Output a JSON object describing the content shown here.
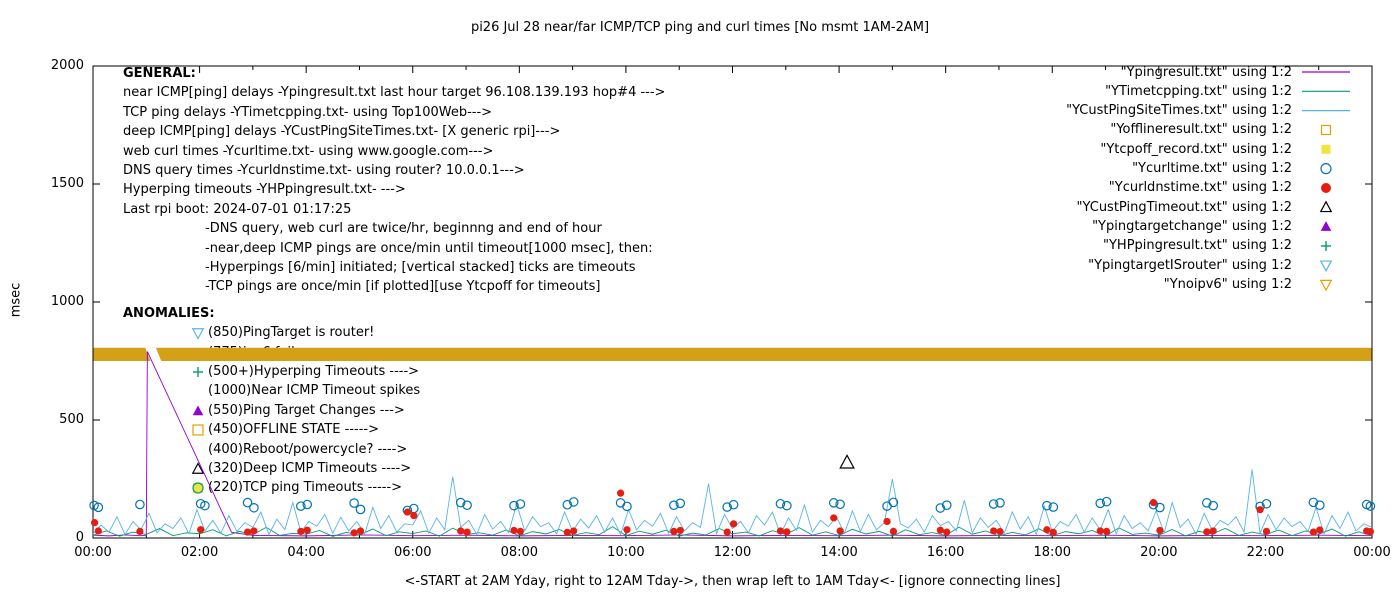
{
  "title": "pi26 Jul 28  near/far ICMP/TCP ping and curl times [No msmt 1AM-2AM]",
  "ylabel": "msec",
  "xlabel": "<-START at 2AM Yday, right to 12AM Tday->, then wrap left to 1AM Tday<- [ignore connecting lines]",
  "general": {
    "heading": "GENERAL:",
    "lines": [
      "near ICMP[ping] delays -Ypingresult.txt last hour target 96.108.139.193 hop#4 --->",
      "TCP ping delays -YTimetcpping.txt- using Top100Web--->",
      "deep ICMP[ping] delays -YCustPingSiteTimes.txt- [X generic rpi]--->",
      "web curl times -Ycurltime.txt- using www.google.com--->",
      "DNS query times -Ycurldnstime.txt- using router? 10.0.0.1--->",
      "Hyperping timeouts -YHPpingresult.txt- --->",
      "Last rpi boot: 2024-07-01 01:17:25"
    ],
    "notes": [
      "-DNS query, web curl are twice/hr, beginnng and end of hour",
      "-near,deep ICMP pings are once/min until timeout[1000 msec], then:",
      " -Hyperpings [6/min] initiated; [vertical stacked] ticks are timeouts",
      "-TCP pings are once/min [if plotted][use Ytcpoff for timeouts]"
    ]
  },
  "anomalies": {
    "heading": "ANOMALIES:",
    "items": [
      {
        "marker": "tri-down-open",
        "color": "#56b4e9",
        "text": "(850)PingTarget is router!"
      },
      {
        "marker": "tri-down-open",
        "color": "#e69f00",
        "text": "(775)ipv6 fail ---->",
        "obscured": true
      },
      {
        "marker": "plus",
        "color": "#009e73",
        "text": "(500+)Hyperping Timeouts ---->"
      },
      {
        "marker": null,
        "color": null,
        "text": "(1000)Near ICMP Timeout spikes"
      },
      {
        "marker": "triangle-filled",
        "color": "#9400d3",
        "text": "(550)Ping Target Changes --->"
      },
      {
        "marker": "square-open",
        "color": "#e69f00",
        "text": "(450)OFFLINE STATE ----->"
      },
      {
        "marker": null,
        "color": null,
        "text": "(400)Reboot/powercycle? ---->"
      },
      {
        "marker": "triangle-open",
        "color": "#000000",
        "text": "(320)Deep ICMP Timeouts ---->"
      },
      {
        "marker": "square-filled",
        "color": "#f0e442",
        "marker2": "circle-open",
        "color2": "#009e73",
        "text": "(220)TCP ping Timeouts ----->"
      }
    ]
  },
  "legend": [
    {
      "label": "\"Ypingresult.txt\" using 1:2",
      "marker": "line",
      "color": "#9400d3"
    },
    {
      "label": "\"YTimetcpping.txt\" using 1:2",
      "marker": "line",
      "color": "#009e73"
    },
    {
      "label": "\"YCustPingSiteTimes.txt\" using 1:2",
      "marker": "line",
      "color": "#56b4e9"
    },
    {
      "label": "\"Yofflineresult.txt\" using 1:2",
      "marker": "square-open",
      "color": "#e69f00"
    },
    {
      "label": "\"Ytcpoff_record.txt\" using 1:2",
      "marker": "square-filled",
      "color": "#f0e442"
    },
    {
      "label": "\"Ycurltime.txt\" using 1:2",
      "marker": "circle-open",
      "color": "#0072b2"
    },
    {
      "label": "\"Ycurldnstime.txt\" using 1:2",
      "marker": "circle-filled",
      "color": "#e51e10"
    },
    {
      "label": "\"YCustPingTimeout.txt\" using 1:2",
      "marker": "triangle-open",
      "color": "#000000"
    },
    {
      "label": "\"Ypingtargetchange\" using 1:2",
      "marker": "triangle-filled",
      "color": "#9400d3"
    },
    {
      "label": "\"YHPpingresult.txt\" using 1:2",
      "marker": "plus",
      "color": "#009e73"
    },
    {
      "label": "\"YpingtargetISrouter\" using 1:2",
      "marker": "tri-down-open",
      "color": "#56b4e9"
    },
    {
      "label": "\"Ynoipv6\" using 1:2",
      "marker": "tri-down-open",
      "color": "#e69f00"
    }
  ],
  "chart_data": {
    "type": "line",
    "title": "pi26 Jul 28  near/far ICMP/TCP ping and curl times [No msmt 1AM-2AM]",
    "xlabel": "<-START at 2AM Yday, right to 12AM Tday->, then wrap left to 1AM Tday<- [ignore connecting lines]",
    "ylabel": "msec",
    "xlim": [
      0,
      24
    ],
    "ylim": [
      0,
      2000
    ],
    "y_ticks": [
      0,
      500,
      1000,
      1500,
      2000
    ],
    "x_tick_labels": [
      "00:00",
      "02:00",
      "04:00",
      "06:00",
      "08:00",
      "10:00",
      "12:00",
      "14:00",
      "16:00",
      "18:00",
      "20:00",
      "22:00",
      "00:00"
    ],
    "grid": false,
    "legend_position": "top-right-outside-style",
    "series": [
      {
        "name": "Ypingresult",
        "type": "line",
        "color": "#9400d3",
        "points": [
          [
            0,
            12
          ],
          [
            0.3,
            9
          ],
          [
            0.6,
            13
          ],
          [
            0.9,
            10
          ],
          [
            1.0,
            12
          ],
          [
            1.02,
            790
          ],
          [
            2.6,
            24
          ],
          [
            3,
            11
          ],
          [
            4,
            9
          ],
          [
            5,
            13
          ],
          [
            6,
            10
          ],
          [
            7,
            12
          ],
          [
            8,
            9
          ],
          [
            9,
            11
          ],
          [
            10,
            10
          ],
          [
            11,
            13
          ],
          [
            12,
            9
          ],
          [
            13,
            11
          ],
          [
            14,
            10
          ],
          [
            15,
            12
          ],
          [
            16,
            9
          ],
          [
            17,
            11
          ],
          [
            18,
            10
          ],
          [
            19,
            12
          ],
          [
            20,
            9
          ],
          [
            21,
            11
          ],
          [
            22,
            10
          ],
          [
            23,
            12
          ],
          [
            24,
            10
          ]
        ]
      },
      {
        "name": "YTimetcpping",
        "type": "line",
        "color": "#009e73",
        "x_start": 0,
        "x_step": 0.25,
        "y": [
          12,
          30,
          8,
          25,
          15,
          40,
          10,
          22,
          18,
          35,
          9,
          28,
          14,
          45,
          11,
          20,
          16,
          32,
          7,
          24,
          13,
          38,
          10,
          26,
          19,
          30,
          8,
          42,
          15,
          22,
          12,
          34,
          9,
          27,
          17,
          36,
          11,
          23,
          14,
          48,
          10,
          29,
          16,
          33,
          8,
          21,
          13,
          40,
          18,
          25,
          9,
          31,
          15,
          44,
          12,
          26,
          10,
          37,
          17,
          28,
          8,
          35,
          14,
          23,
          11,
          46,
          16,
          30,
          9,
          24,
          13,
          39,
          10,
          27,
          18,
          32,
          8,
          43,
          15,
          21,
          12,
          36,
          9,
          28,
          17,
          41,
          11,
          25,
          14,
          34,
          10,
          30,
          16,
          38,
          8,
          26,
          10
        ]
      },
      {
        "name": "YCustPingSiteTimes",
        "type": "line",
        "color": "#56b4e9",
        "x_start": 0,
        "x_step": 0.15,
        "y": [
          18,
          55,
          25,
          90,
          15,
          70,
          35,
          105,
          22,
          60,
          40,
          85,
          18,
          120,
          30,
          75,
          20,
          95,
          28,
          65,
          45,
          110,
          15,
          80,
          35,
          150,
          25,
          70,
          50,
          100,
          20,
          88,
          30,
          70,
          18,
          130,
          40,
          95,
          25,
          60,
          55,
          115,
          20,
          85,
          35,
          260,
          45,
          75,
          15,
          100,
          38,
          70,
          22,
          145,
          30,
          90,
          48,
          65,
          18,
          110,
          28,
          80,
          42,
          95,
          25,
          85,
          15,
          120,
          35,
          75,
          50,
          105,
          20,
          90,
          30,
          65,
          45,
          230,
          18,
          100,
          40,
          70,
          22,
          95,
          55,
          110,
          15,
          85,
          33,
          140,
          25,
          75,
          48,
          90,
          20,
          115,
          28,
          100,
          35,
          65,
          250,
          60,
          42,
          80,
          25,
          95,
          52,
          70,
          30,
          160,
          22,
          85,
          45,
          75,
          20,
          110,
          38,
          90,
          15,
          135,
          28,
          70,
          50,
          100,
          25,
          85,
          35,
          120,
          18,
          95,
          40,
          65,
          30,
          115,
          22,
          150,
          45,
          80,
          15,
          105,
          33,
          75,
          55,
          90,
          25,
          290,
          20,
          100,
          35,
          85,
          48,
          70,
          28,
          130,
          18,
          95,
          40,
          110,
          30,
          60,
          45
        ]
      },
      {
        "name": "Ycurltime",
        "type": "scatter",
        "marker": "circle-open",
        "color": "#0072b2",
        "points": [
          [
            0.02,
            138
          ],
          [
            0.1,
            130
          ],
          [
            0.88,
            142
          ],
          [
            2.02,
            145
          ],
          [
            2.1,
            137
          ],
          [
            2.9,
            150
          ],
          [
            3.02,
            128
          ],
          [
            3.9,
            135
          ],
          [
            4.02,
            142
          ],
          [
            4.9,
            148
          ],
          [
            5.02,
            121
          ],
          [
            5.9,
            117
          ],
          [
            6.02,
            125
          ],
          [
            6.9,
            150
          ],
          [
            7.02,
            139
          ],
          [
            7.9,
            137
          ],
          [
            8.02,
            144
          ],
          [
            8.9,
            141
          ],
          [
            9.02,
            153
          ],
          [
            9.9,
            149
          ],
          [
            10.02,
            134
          ],
          [
            10.9,
            139
          ],
          [
            11.02,
            147
          ],
          [
            11.9,
            131
          ],
          [
            12.02,
            141
          ],
          [
            12.9,
            145
          ],
          [
            13.02,
            137
          ],
          [
            13.9,
            149
          ],
          [
            14.02,
            143
          ],
          [
            14.9,
            135
          ],
          [
            15.02,
            151
          ],
          [
            15.9,
            127
          ],
          [
            16.02,
            139
          ],
          [
            16.9,
            144
          ],
          [
            17.02,
            149
          ],
          [
            17.9,
            137
          ],
          [
            18.02,
            131
          ],
          [
            18.9,
            147
          ],
          [
            19.02,
            154
          ],
          [
            19.9,
            141
          ],
          [
            20.02,
            129
          ],
          [
            20.9,
            149
          ],
          [
            21.02,
            137
          ],
          [
            21.9,
            134
          ],
          [
            22.02,
            145
          ],
          [
            22.9,
            151
          ],
          [
            23.02,
            139
          ],
          [
            23.9,
            142
          ],
          [
            23.97,
            135
          ]
        ]
      },
      {
        "name": "Ycurldnstime",
        "type": "scatter",
        "marker": "circle-filled",
        "color": "#e51e10",
        "points": [
          [
            0.03,
            65
          ],
          [
            0.1,
            30
          ],
          [
            0.88,
            28
          ],
          [
            2.02,
            35
          ],
          [
            2.9,
            25
          ],
          [
            3.02,
            30
          ],
          [
            3.9,
            28
          ],
          [
            4.02,
            33
          ],
          [
            4.9,
            22
          ],
          [
            5.02,
            30
          ],
          [
            5.9,
            110
          ],
          [
            6.02,
            95
          ],
          [
            6.9,
            30
          ],
          [
            7.02,
            25
          ],
          [
            7.9,
            32
          ],
          [
            8.02,
            28
          ],
          [
            8.9,
            24
          ],
          [
            9.02,
            30
          ],
          [
            9.9,
            190
          ],
          [
            10.02,
            35
          ],
          [
            10.9,
            28
          ],
          [
            11.02,
            32
          ],
          [
            11.9,
            25
          ],
          [
            12.02,
            60
          ],
          [
            12.9,
            30
          ],
          [
            13.02,
            26
          ],
          [
            13.9,
            85
          ],
          [
            14.02,
            30
          ],
          [
            14.9,
            70
          ],
          [
            15.02,
            28
          ],
          [
            15.9,
            33
          ],
          [
            16.02,
            25
          ],
          [
            16.9,
            30
          ],
          [
            17.02,
            27
          ],
          [
            17.9,
            35
          ],
          [
            18.02,
            24
          ],
          [
            18.9,
            30
          ],
          [
            19.02,
            28
          ],
          [
            19.9,
            150
          ],
          [
            20.02,
            32
          ],
          [
            20.9,
            26
          ],
          [
            21.02,
            30
          ],
          [
            21.9,
            120
          ],
          [
            22.02,
            28
          ],
          [
            22.9,
            25
          ],
          [
            23.02,
            34
          ],
          [
            23.9,
            30
          ],
          [
            23.97,
            27
          ]
        ]
      },
      {
        "name": "YCustPingTimeout",
        "type": "scatter",
        "marker": "triangle-open",
        "color": "#000000",
        "points": [
          [
            14.15,
            320
          ]
        ]
      },
      {
        "name": "Ynoipv6_band",
        "type": "band",
        "color": "#d4a017",
        "y_low": 750,
        "y_high": 806,
        "gap_polygon": [
          [
            0.98,
            806
          ],
          [
            1.18,
            806
          ],
          [
            1.28,
            750
          ],
          [
            1.08,
            750
          ]
        ]
      }
    ]
  }
}
